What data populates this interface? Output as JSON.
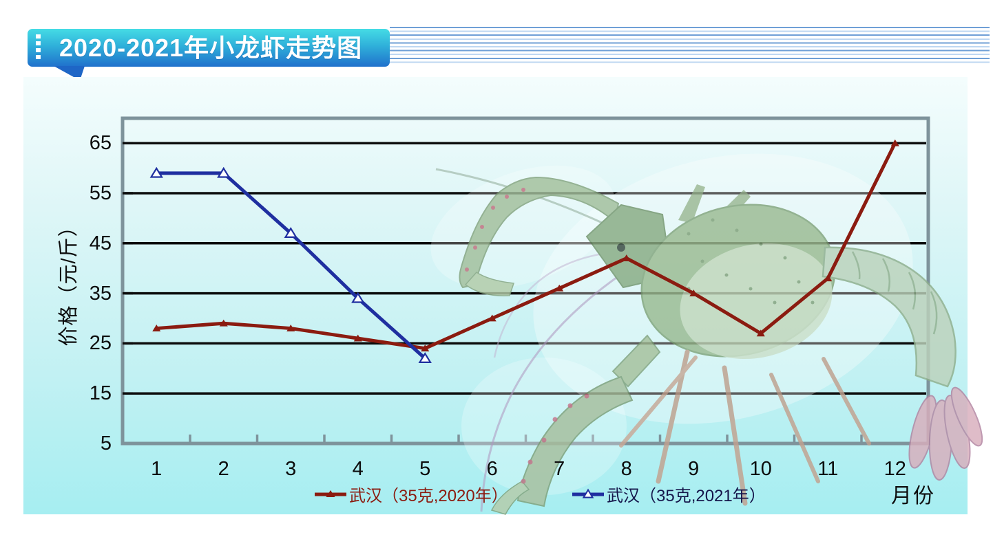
{
  "banner": {
    "title": "2020-2021年小龙虾走势图"
  },
  "chart_data": {
    "type": "line",
    "title": "2020-2021年小龙虾走势图",
    "x": [
      1,
      2,
      3,
      4,
      5,
      6,
      7,
      8,
      9,
      10,
      11,
      12
    ],
    "x_axis_label": "月份",
    "y_axis_label": "价格（元/斤）",
    "y_ticks": [
      65,
      55,
      45,
      35,
      25,
      15,
      5
    ],
    "ylim": [
      5,
      70
    ],
    "grid": "horizontal-black",
    "legend_position": "bottom",
    "series": [
      {
        "name": "武汉（35克,2020年）",
        "color": "#8B1B10",
        "label_color": "#8B1B10",
        "marker": "filled-triangle",
        "values": [
          28,
          29,
          28,
          26,
          24,
          30,
          36,
          42,
          35,
          27,
          38,
          65
        ]
      },
      {
        "name": "武汉（35克,2021年）",
        "color": "#1F2FA0",
        "label_color": "#15154A",
        "marker": "open-triangle",
        "values": [
          59,
          59,
          47,
          34,
          22
        ]
      }
    ]
  },
  "axis_colors": {
    "gridline": "#0B0B0B",
    "axis_frame": "#7E939B",
    "tick_label": "#0C0C0C"
  }
}
